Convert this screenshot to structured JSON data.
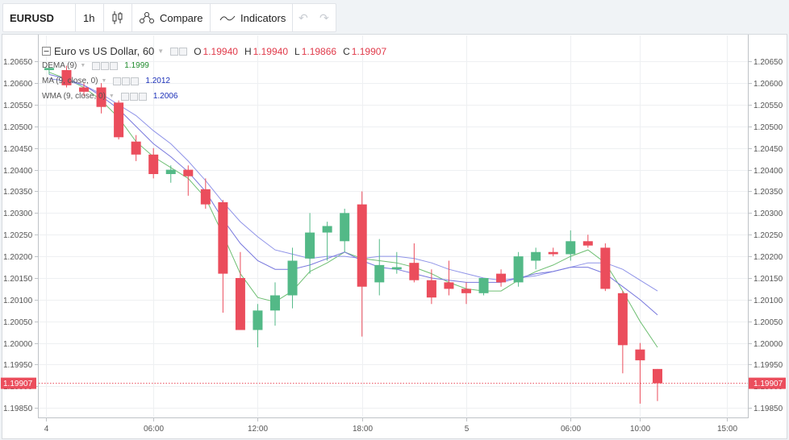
{
  "toolbar": {
    "symbol": "EURUSD",
    "interval": "1h",
    "compare_label": "Compare",
    "indicators_label": "Indicators"
  },
  "legend": {
    "title": "Euro vs US Dollar, 60",
    "ohlc": [
      {
        "key": "O",
        "value": "1.19940"
      },
      {
        "key": "H",
        "value": "1.19940"
      },
      {
        "key": "L",
        "value": "1.19866"
      },
      {
        "key": "C",
        "value": "1.19907"
      }
    ],
    "indicators": [
      {
        "label": "DEMA (9)",
        "value": "1.1999",
        "color": "#1d8a2a"
      },
      {
        "label": "MA (9, close, 0)",
        "value": "1.2012",
        "color": "#1a2fb8"
      },
      {
        "label": "WMA (9, close, 0)",
        "value": "1.2006",
        "color": "#1a2fb8"
      }
    ]
  },
  "colors": {
    "up": "#53b987",
    "down": "#eb4d5c",
    "dema": "#6fbf73",
    "ma": "#8f93e8",
    "wma": "#7777dd"
  },
  "chart_data": {
    "type": "candlestick",
    "y_ticks": [
      "1.20650",
      "1.20600",
      "1.20550",
      "1.20500",
      "1.20450",
      "1.20400",
      "1.20350",
      "1.20300",
      "1.20250",
      "1.20200",
      "1.20150",
      "1.20100",
      "1.20050",
      "1.20000",
      "1.19950",
      "1.19900",
      "1.19850"
    ],
    "ylim": [
      1.1983,
      1.2071
    ],
    "x_ticks": [
      {
        "label": "4",
        "bar": -0.2
      },
      {
        "label": "06:00",
        "bar": 6
      },
      {
        "label": "12:00",
        "bar": 12
      },
      {
        "label": "18:00",
        "bar": 18
      },
      {
        "label": "5",
        "bar": 24
      },
      {
        "label": "06:00",
        "bar": 30
      },
      {
        "label": "10:00",
        "bar": 34
      },
      {
        "label": "15:00",
        "bar": 39
      }
    ],
    "xlim": [
      -0.6,
      40.2
    ],
    "last_price": "1.19907",
    "last_value": 1.19907,
    "candles": [
      {
        "o": 1.2063,
        "h": 1.2064,
        "l": 1.2062,
        "c": 1.20635
      },
      {
        "o": 1.2063,
        "h": 1.2064,
        "l": 1.2059,
        "c": 1.20595
      },
      {
        "o": 1.2059,
        "h": 1.206,
        "l": 1.2057,
        "c": 1.2058
      },
      {
        "o": 1.2059,
        "h": 1.206,
        "l": 1.2053,
        "c": 1.20545
      },
      {
        "o": 1.20555,
        "h": 1.2056,
        "l": 1.2047,
        "c": 1.20475
      },
      {
        "o": 1.20465,
        "h": 1.2048,
        "l": 1.2042,
        "c": 1.20435
      },
      {
        "o": 1.20435,
        "h": 1.2045,
        "l": 1.2038,
        "c": 1.2039
      },
      {
        "o": 1.2039,
        "h": 1.2041,
        "l": 1.2037,
        "c": 1.204
      },
      {
        "o": 1.204,
        "h": 1.2041,
        "l": 1.2034,
        "c": 1.20385
      },
      {
        "o": 1.20355,
        "h": 1.2038,
        "l": 1.2031,
        "c": 1.2032
      },
      {
        "o": 1.20325,
        "h": 1.2033,
        "l": 1.2007,
        "c": 1.2016
      },
      {
        "o": 1.2015,
        "h": 1.2021,
        "l": 1.2003,
        "c": 1.2003
      },
      {
        "o": 1.2003,
        "h": 1.2009,
        "l": 1.1999,
        "c": 1.20075
      },
      {
        "o": 1.20075,
        "h": 1.2014,
        "l": 1.2004,
        "c": 1.2011
      },
      {
        "o": 1.2011,
        "h": 1.2022,
        "l": 1.2008,
        "c": 1.2019
      },
      {
        "o": 1.20195,
        "h": 1.203,
        "l": 1.2016,
        "c": 1.20255
      },
      {
        "o": 1.20255,
        "h": 1.2028,
        "l": 1.2019,
        "c": 1.2027
      },
      {
        "o": 1.20235,
        "h": 1.2031,
        "l": 1.2021,
        "c": 1.203
      },
      {
        "o": 1.2032,
        "h": 1.2035,
        "l": 1.20015,
        "c": 1.2013
      },
      {
        "o": 1.2014,
        "h": 1.2024,
        "l": 1.2011,
        "c": 1.2018
      },
      {
        "o": 1.2017,
        "h": 1.2021,
        "l": 1.2016,
        "c": 1.20175
      },
      {
        "o": 1.20185,
        "h": 1.2023,
        "l": 1.2014,
        "c": 1.20145
      },
      {
        "o": 1.20145,
        "h": 1.2017,
        "l": 1.2009,
        "c": 1.20105
      },
      {
        "o": 1.2014,
        "h": 1.2019,
        "l": 1.2011,
        "c": 1.20125
      },
      {
        "o": 1.20125,
        "h": 1.2014,
        "l": 1.2009,
        "c": 1.20115
      },
      {
        "o": 1.20115,
        "h": 1.2015,
        "l": 1.2011,
        "c": 1.2015
      },
      {
        "o": 1.2016,
        "h": 1.2017,
        "l": 1.2013,
        "c": 1.2014
      },
      {
        "o": 1.2014,
        "h": 1.2021,
        "l": 1.2013,
        "c": 1.202
      },
      {
        "o": 1.2019,
        "h": 1.2022,
        "l": 1.2017,
        "c": 1.2021
      },
      {
        "o": 1.2021,
        "h": 1.2022,
        "l": 1.202,
        "c": 1.20205
      },
      {
        "o": 1.20205,
        "h": 1.2026,
        "l": 1.2019,
        "c": 1.20235
      },
      {
        "o": 1.20235,
        "h": 1.2025,
        "l": 1.2022,
        "c": 1.20225
      },
      {
        "o": 1.2022,
        "h": 1.2023,
        "l": 1.2012,
        "c": 1.20125
      },
      {
        "o": 1.20115,
        "h": 1.2012,
        "l": 1.1993,
        "c": 1.19995
      },
      {
        "o": 1.19985,
        "h": 1.2,
        "l": 1.1986,
        "c": 1.1996
      },
      {
        "o": 1.1994,
        "h": 1.1994,
        "l": 1.19866,
        "c": 1.19907
      }
    ],
    "series": [
      {
        "name": "DEMA (9)",
        "x": [
          0,
          1,
          2,
          3,
          4,
          5,
          6,
          7,
          8,
          9,
          10,
          11,
          12,
          13,
          14,
          15,
          16,
          17,
          18,
          19,
          20,
          21,
          22,
          23,
          24,
          25,
          26,
          27,
          28,
          29,
          30,
          31,
          32,
          33,
          34,
          35
        ],
        "values": [
          1.20625,
          1.2061,
          1.2059,
          1.2056,
          1.2052,
          1.20465,
          1.2043,
          1.20405,
          1.2038,
          1.20335,
          1.2025,
          1.2016,
          1.20105,
          1.20095,
          1.2012,
          1.20165,
          1.20185,
          1.2021,
          1.20195,
          1.2019,
          1.20185,
          1.20175,
          1.2016,
          1.2014,
          1.20125,
          1.2012,
          1.2012,
          1.20145,
          1.20165,
          1.2018,
          1.202,
          1.20215,
          1.20185,
          1.2012,
          1.2005,
          1.1999
        ]
      },
      {
        "name": "MA (9, close, 0)",
        "x": [
          0,
          1,
          2,
          3,
          4,
          5,
          6,
          7,
          8,
          9,
          10,
          11,
          12,
          13,
          14,
          15,
          16,
          17,
          18,
          19,
          20,
          21,
          22,
          23,
          24,
          25,
          26,
          27,
          28,
          29,
          30,
          31,
          32,
          33,
          34,
          35
        ],
        "values": [
          1.2061,
          1.20605,
          1.20595,
          1.20575,
          1.2055,
          1.20525,
          1.2049,
          1.2046,
          1.2042,
          1.20375,
          1.20325,
          1.2028,
          1.20245,
          1.20215,
          1.20205,
          1.20195,
          1.202,
          1.202,
          1.20195,
          1.202,
          1.202,
          1.20195,
          1.20185,
          1.2017,
          1.2016,
          1.2015,
          1.20145,
          1.2015,
          1.20155,
          1.20165,
          1.20175,
          1.20185,
          1.20185,
          1.2017,
          1.20145,
          1.2012
        ]
      },
      {
        "name": "WMA (9, close, 0)",
        "x": [
          0,
          1,
          2,
          3,
          4,
          5,
          6,
          7,
          8,
          9,
          10,
          11,
          12,
          13,
          14,
          15,
          16,
          17,
          18,
          19,
          20,
          21,
          22,
          23,
          24,
          25,
          26,
          27,
          28,
          29,
          30,
          31,
          32,
          33,
          34,
          35
        ],
        "values": [
          1.2062,
          1.2061,
          1.20595,
          1.2057,
          1.2054,
          1.205,
          1.2046,
          1.2043,
          1.20395,
          1.2035,
          1.20285,
          1.2023,
          1.2019,
          1.2017,
          1.2017,
          1.2018,
          1.20195,
          1.2021,
          1.2019,
          1.20175,
          1.2017,
          1.2016,
          1.2015,
          1.20145,
          1.2014,
          1.2014,
          1.2014,
          1.2015,
          1.2016,
          1.20165,
          1.20175,
          1.20175,
          1.2016,
          1.2013,
          1.201,
          1.20065
        ]
      }
    ],
    "grid": true
  }
}
